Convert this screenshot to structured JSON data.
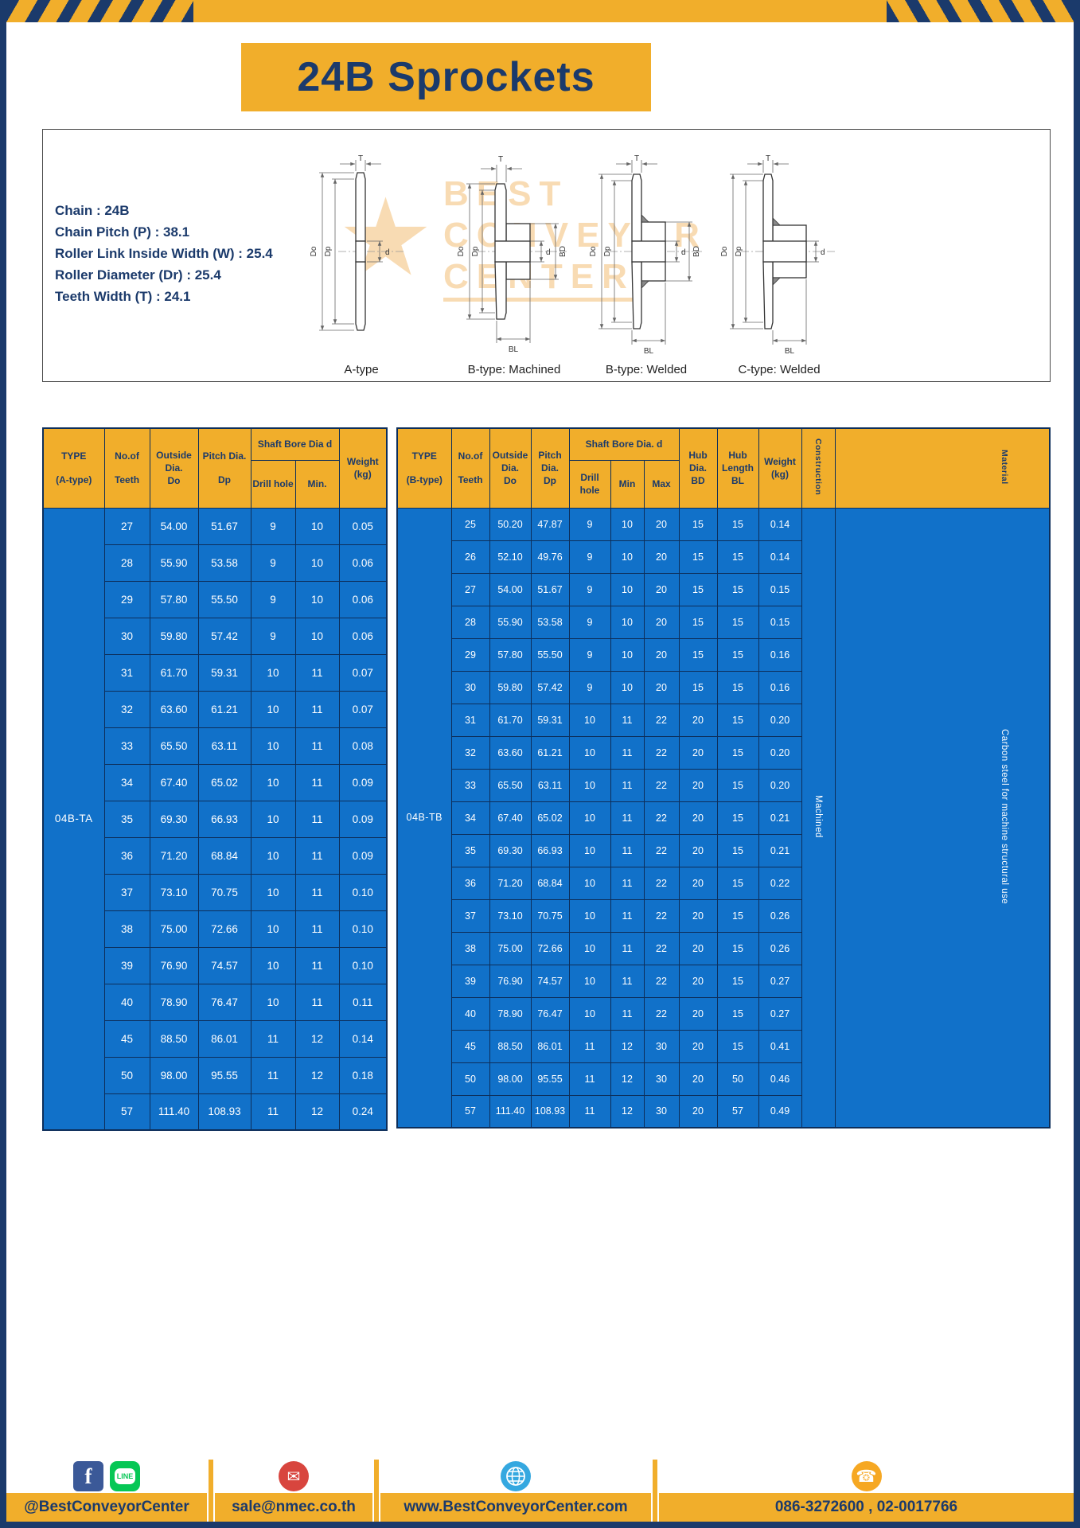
{
  "title": "24B Sprockets",
  "specs": {
    "chain": "Chain : 24B",
    "pitch": "Chain Pitch (P) : 38.1",
    "roller_width": "Roller Link Inside Width (W) : 25.4",
    "roller_dia": "Roller Diameter (Dr) : 25.4",
    "teeth_width": "Teeth Width (T) : 24.1"
  },
  "diagrams": {
    "labels": [
      "A-type",
      "B-type: Machined",
      "B-type: Welded",
      "C-type: Welded"
    ],
    "dims": {
      "t": "T",
      "outside": "Do",
      "pitch": "Dp",
      "bore": "d",
      "hub_dia": "BD",
      "hub_len": "BL"
    }
  },
  "watermark": {
    "l1": "BEST",
    "l2": "CONVEYOR",
    "l3": "CENTER"
  },
  "table_a": {
    "header": {
      "type1": "TYPE",
      "type2": "(A-type)",
      "teeth1": "No.of",
      "teeth2": "Teeth",
      "out1": "Outside",
      "out2": "Dia.",
      "out3": "Do",
      "pitch1": "Pitch Dia.",
      "pitch2": "Dp",
      "bore_group": "Shaft Bore Dia d",
      "drill": "Drill hole",
      "min": "Min.",
      "w1": "Weight",
      "w2": "(kg)"
    },
    "type_label": "04B-TA",
    "rows": [
      [
        "27",
        "54.00",
        "51.67",
        "9",
        "10",
        "0.05"
      ],
      [
        "28",
        "55.90",
        "53.58",
        "9",
        "10",
        "0.06"
      ],
      [
        "29",
        "57.80",
        "55.50",
        "9",
        "10",
        "0.06"
      ],
      [
        "30",
        "59.80",
        "57.42",
        "9",
        "10",
        "0.06"
      ],
      [
        "31",
        "61.70",
        "59.31",
        "10",
        "11",
        "0.07"
      ],
      [
        "32",
        "63.60",
        "61.21",
        "10",
        "11",
        "0.07"
      ],
      [
        "33",
        "65.50",
        "63.11",
        "10",
        "11",
        "0.08"
      ],
      [
        "34",
        "67.40",
        "65.02",
        "10",
        "11",
        "0.09"
      ],
      [
        "35",
        "69.30",
        "66.93",
        "10",
        "11",
        "0.09"
      ],
      [
        "36",
        "71.20",
        "68.84",
        "10",
        "11",
        "0.09"
      ],
      [
        "37",
        "73.10",
        "70.75",
        "10",
        "11",
        "0.10"
      ],
      [
        "38",
        "75.00",
        "72.66",
        "10",
        "11",
        "0.10"
      ],
      [
        "39",
        "76.90",
        "74.57",
        "10",
        "11",
        "0.10"
      ],
      [
        "40",
        "78.90",
        "76.47",
        "10",
        "11",
        "0.11"
      ],
      [
        "45",
        "88.50",
        "86.01",
        "11",
        "12",
        "0.14"
      ],
      [
        "50",
        "98.00",
        "95.55",
        "11",
        "12",
        "0.18"
      ],
      [
        "57",
        "111.40",
        "108.93",
        "11",
        "12",
        "0.24"
      ]
    ]
  },
  "table_b": {
    "header": {
      "type1": "TYPE",
      "type2": "(B-type)",
      "teeth1": "No.of",
      "teeth2": "Teeth",
      "out1": "Outside",
      "out2": "Dia.",
      "out3": "Do",
      "pitch1": "Pitch",
      "pitch2": "Dia.",
      "pitch3": "Dp",
      "bore_group": "Shaft Bore Dia. d",
      "drill": "Drill hole",
      "min": "Min",
      "max": "Max",
      "hubd1": "Hub",
      "hubd2": "Dia.",
      "hubd3": "BD",
      "hubl1": "Hub",
      "hubl2": "Length",
      "hubl3": "BL",
      "w1": "Weight",
      "w2": "(kg)",
      "construction": "Construction",
      "material": "Material"
    },
    "type_label": "04B-TB",
    "construction_value": "Machined",
    "material_value": "Carbon steel for machine structural use",
    "rows": [
      [
        "25",
        "50.20",
        "47.87",
        "9",
        "10",
        "20",
        "15",
        "15",
        "0.14"
      ],
      [
        "26",
        "52.10",
        "49.76",
        "9",
        "10",
        "20",
        "15",
        "15",
        "0.14"
      ],
      [
        "27",
        "54.00",
        "51.67",
        "9",
        "10",
        "20",
        "15",
        "15",
        "0.15"
      ],
      [
        "28",
        "55.90",
        "53.58",
        "9",
        "10",
        "20",
        "15",
        "15",
        "0.15"
      ],
      [
        "29",
        "57.80",
        "55.50",
        "9",
        "10",
        "20",
        "15",
        "15",
        "0.16"
      ],
      [
        "30",
        "59.80",
        "57.42",
        "9",
        "10",
        "20",
        "15",
        "15",
        "0.16"
      ],
      [
        "31",
        "61.70",
        "59.31",
        "10",
        "11",
        "22",
        "20",
        "15",
        "0.20"
      ],
      [
        "32",
        "63.60",
        "61.21",
        "10",
        "11",
        "22",
        "20",
        "15",
        "0.20"
      ],
      [
        "33",
        "65.50",
        "63.11",
        "10",
        "11",
        "22",
        "20",
        "15",
        "0.20"
      ],
      [
        "34",
        "67.40",
        "65.02",
        "10",
        "11",
        "22",
        "20",
        "15",
        "0.21"
      ],
      [
        "35",
        "69.30",
        "66.93",
        "10",
        "11",
        "22",
        "20",
        "15",
        "0.21"
      ],
      [
        "36",
        "71.20",
        "68.84",
        "10",
        "11",
        "22",
        "20",
        "15",
        "0.22"
      ],
      [
        "37",
        "73.10",
        "70.75",
        "10",
        "11",
        "22",
        "20",
        "15",
        "0.26"
      ],
      [
        "38",
        "75.00",
        "72.66",
        "10",
        "11",
        "22",
        "20",
        "15",
        "0.26"
      ],
      [
        "39",
        "76.90",
        "74.57",
        "10",
        "11",
        "22",
        "20",
        "15",
        "0.27"
      ],
      [
        "40",
        "78.90",
        "76.47",
        "10",
        "11",
        "22",
        "20",
        "15",
        "0.27"
      ],
      [
        "45",
        "88.50",
        "86.01",
        "11",
        "12",
        "30",
        "20",
        "15",
        "0.41"
      ],
      [
        "50",
        "98.00",
        "95.55",
        "11",
        "12",
        "30",
        "20",
        "50",
        "0.46"
      ],
      [
        "57",
        "111.40",
        "108.93",
        "11",
        "12",
        "30",
        "20",
        "57",
        "0.49"
      ]
    ]
  },
  "footer": {
    "facebook": "f",
    "line": "LINE",
    "social": "@BestConveyorCenter",
    "email": "sale@nmec.co.th",
    "website": "www.BestConveyorCenter.com",
    "phone": "086-3272600 , 02-0017766"
  },
  "colors": {
    "yellow": "#F1AE2B",
    "navy": "#1B3A6B",
    "table_blue": "#1171C9"
  }
}
